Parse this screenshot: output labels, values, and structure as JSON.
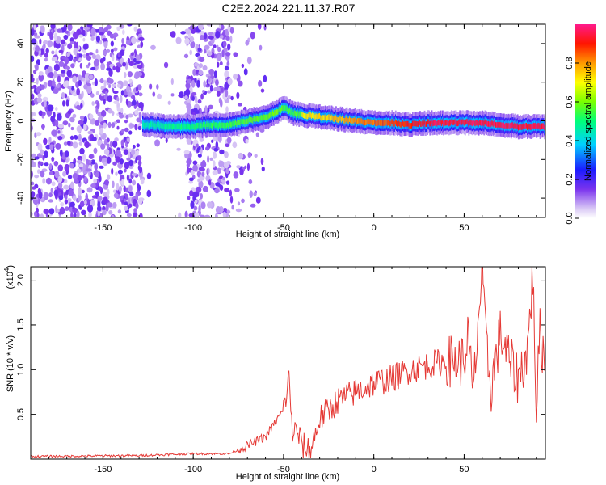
{
  "title": "C2E2.2024.221.11.37.R07",
  "chart_data": [
    {
      "type": "heatmap",
      "xlabel": "Height of straight line (km)",
      "ylabel": "Frequency (Hz)",
      "xlim": [
        -190,
        95
      ],
      "ylim": [
        -50,
        50
      ],
      "xticks": [
        -150,
        -100,
        -50,
        0,
        50
      ],
      "yticks": [
        -40,
        -20,
        0,
        20,
        40
      ],
      "colorbar": {
        "label": "Normalized spectral amplitude",
        "range": [
          0,
          1
        ],
        "ticks": [
          0.0,
          0.2,
          0.4,
          0.6,
          0.8
        ]
      },
      "ridge": {
        "x": [
          -128,
          -110,
          -100,
          -90,
          -80,
          -70,
          -60,
          -55,
          -50,
          -45,
          -40,
          -30,
          -20,
          -10,
          0,
          10,
          20,
          30,
          40,
          50,
          60,
          70,
          80,
          95
        ],
        "y": [
          -2,
          -3,
          -3,
          -2,
          -2,
          0,
          2,
          4,
          7,
          4,
          3,
          2,
          1,
          0,
          -1,
          -1,
          -2,
          -1,
          -1,
          -1,
          -1,
          -2,
          -3,
          -3
        ]
      }
    },
    {
      "type": "line",
      "xlabel": "Height of straight line (km)",
      "ylabel": "SNR (10 * v/v)",
      "yscale_label": "(x10",
      "yscale_exp": "4",
      "xlim": [
        -190,
        95
      ],
      "ylim": [
        0,
        2.15
      ],
      "xticks": [
        -150,
        -100,
        -50,
        0,
        50
      ],
      "yticks": [
        0.5,
        1.0,
        1.5,
        2.0
      ],
      "series": [
        {
          "x": [
            -190,
            -130,
            -100,
            -80,
            -70,
            -60,
            -55,
            -50,
            -47,
            -45,
            -42,
            -40,
            -35,
            -30,
            -25,
            -20,
            -15,
            -10,
            -5,
            0,
            10,
            20,
            30,
            40,
            50,
            52,
            55,
            58,
            60,
            62,
            65,
            70,
            75,
            80,
            85,
            88,
            90,
            92,
            95
          ],
          "y": [
            0.03,
            0.04,
            0.06,
            0.06,
            0.15,
            0.25,
            0.4,
            0.55,
            0.9,
            0.3,
            0.3,
            0.15,
            0.1,
            0.45,
            0.55,
            0.65,
            0.7,
            0.75,
            0.8,
            0.85,
            0.9,
            1.0,
            1.05,
            1.1,
            1.1,
            1.4,
            0.7,
            1.6,
            2.1,
            1.3,
            0.8,
            1.4,
            1.1,
            0.9,
            1.2,
            2.05,
            0.6,
            1.4,
            1.05
          ],
          "color": "#e53935"
        }
      ]
    }
  ]
}
